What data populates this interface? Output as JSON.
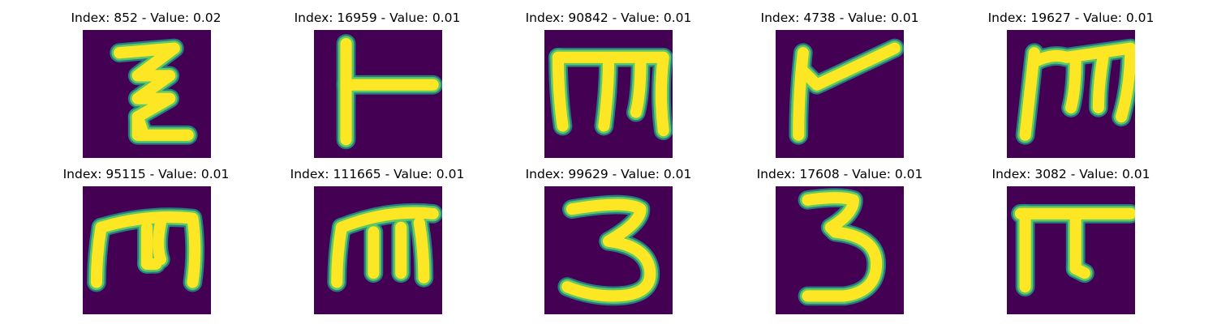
{
  "chart_data": [
    {
      "type": "image",
      "title": "Index: 852 - Value: 0.02",
      "glyph": "zigzag-z",
      "strokes": [
        "M 8 5 L 20 4 L 12 10 L 19 10 L 12 15 L 19 15 L 12 19 L 12 23 L 23 23",
        "M 12 19 L 13 22"
      ]
    },
    {
      "type": "image",
      "title": "Index: 16959 - Value: 0.01",
      "glyph": "vertical-bar-with-crossbar",
      "strokes": [
        "M 7 3 L 7 24",
        "M 7 12 L 26 12"
      ]
    },
    {
      "type": "image",
      "title": "Index: 90842 - Value: 0.01",
      "glyph": "m-shape",
      "strokes": [
        "M 3 6 Q 3 14 4 21",
        "M 3 6 L 26 6 Q 25 14 26 22",
        "M 14 7 Q 14 13 13 21",
        "M 21 7 Q 21 14 20 18"
      ]
    },
    {
      "type": "image",
      "title": "Index: 4738 - Value: 0.01",
      "glyph": "vertical-with-slant",
      "strokes": [
        "M 6 5 Q 5 14 5 23",
        "M 6 9 L 9 12 L 26 4"
      ]
    },
    {
      "type": "image",
      "title": "Index: 19627 - Value: 0.01",
      "glyph": "m-shape",
      "strokes": [
        "M 6 5 Q 5 14 4 23",
        "M 6 7 Q 10 5 13 6 L 27 4 Q 27 12 25 19",
        "M 15 7 Q 15 13 14 17",
        "M 21 6 Q 20 12 20 17"
      ]
    },
    {
      "type": "image",
      "title": "Index: 95115 - Value: 0.01",
      "glyph": "m-shape",
      "strokes": [
        "M 4 9 Q 3 15 3 21",
        "M 4 9 Q 14 6 24 7 Q 25 14 24 21",
        "M 14 9 Q 14 13 14 17",
        "M 14 17 L 16 17",
        "M 17 8 Q 16 13 17 16"
      ]
    },
    {
      "type": "image",
      "title": "Index: 111665 - Value: 0.01",
      "glyph": "m-shape",
      "strokes": [
        "M 6 9 Q 5 15 5 21",
        "M 6 9 Q 16 5 26 6",
        "M 13 10 Q 13 15 13 19",
        "M 19 9 Q 19 14 19 19",
        "M 23 8 Q 24 14 24 20"
      ]
    },
    {
      "type": "image",
      "title": "Index: 99629 - Value: 0.01",
      "glyph": "digit-three",
      "strokes": [
        "M 6 5 Q 18 3 21 5 Q 21 8 14 12 Q 22 13 23 18 Q 24 24 15 24 Q 10 24 5 22"
      ]
    },
    {
      "type": "image",
      "title": "Index: 17608 - Value: 0.01",
      "glyph": "digit-three",
      "strokes": [
        "M 7 3 Q 14 2 17 3 Q 17 6 12 9 L 13 10 Q 22 11 22 17 Q 22 23 15 24 L 7 24"
      ]
    },
    {
      "type": "image",
      "title": "Index: 3082 - Value: 0.01",
      "glyph": "pi-shape",
      "strokes": [
        "M 3 6 L 27 6",
        "M 4 6 Q 4 14 4 22",
        "M 15 7 Q 15 13 15 18",
        "M 15 18 L 17 19"
      ]
    }
  ],
  "colors": {
    "background": "#440154",
    "edge": "#21918c",
    "mid": "#5ec962",
    "core": "#fde725"
  }
}
